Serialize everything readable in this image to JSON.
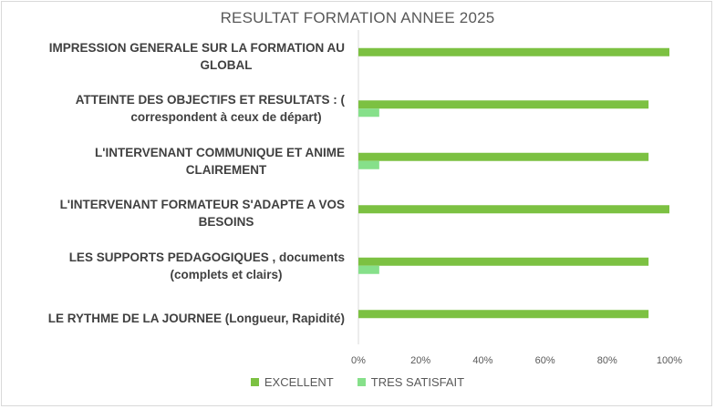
{
  "chart_data": {
    "type": "bar",
    "orientation": "horizontal",
    "title": "RESULTAT FORMATION ANNEE 2025",
    "categories": [
      [
        "IMPRESSION GENERALE SUR LA FORMATION AU",
        "GLOBAL"
      ],
      [
        "ATTEINTE DES OBJECTIFS ET RESULTATS : (",
        "correspondent à ceux de départ)"
      ],
      [
        "L'INTERVENANT COMMUNIQUE ET ANIME",
        "CLAIREMENT"
      ],
      [
        "L'INTERVENANT FORMATEUR S'ADAPTE A VOS",
        "BESOINS"
      ],
      [
        "LES SUPPORTS PEDAGOGIQUES , documents",
        "(complets et clairs)"
      ],
      [
        "LE RYTHME DE LA JOURNEE (Longueur, Rapidité)"
      ]
    ],
    "series": [
      {
        "name": "EXCELLENT",
        "color": "#7cc142",
        "values": [
          1.0,
          0.933,
          0.933,
          1.0,
          0.933,
          0.933
        ]
      },
      {
        "name": "TRES SATISFAIT",
        "color": "#86e08a",
        "values": [
          0,
          0.067,
          0.067,
          0,
          0.067,
          0
        ]
      }
    ],
    "xlim": [
      0,
      1
    ],
    "ticks": [
      "0%",
      "20%",
      "40%",
      "60%",
      "80%",
      "100%"
    ],
    "tick_values": [
      0,
      0.2,
      0.4,
      0.6,
      0.8,
      1.0
    ],
    "grid": false,
    "legend_position": "bottom"
  }
}
